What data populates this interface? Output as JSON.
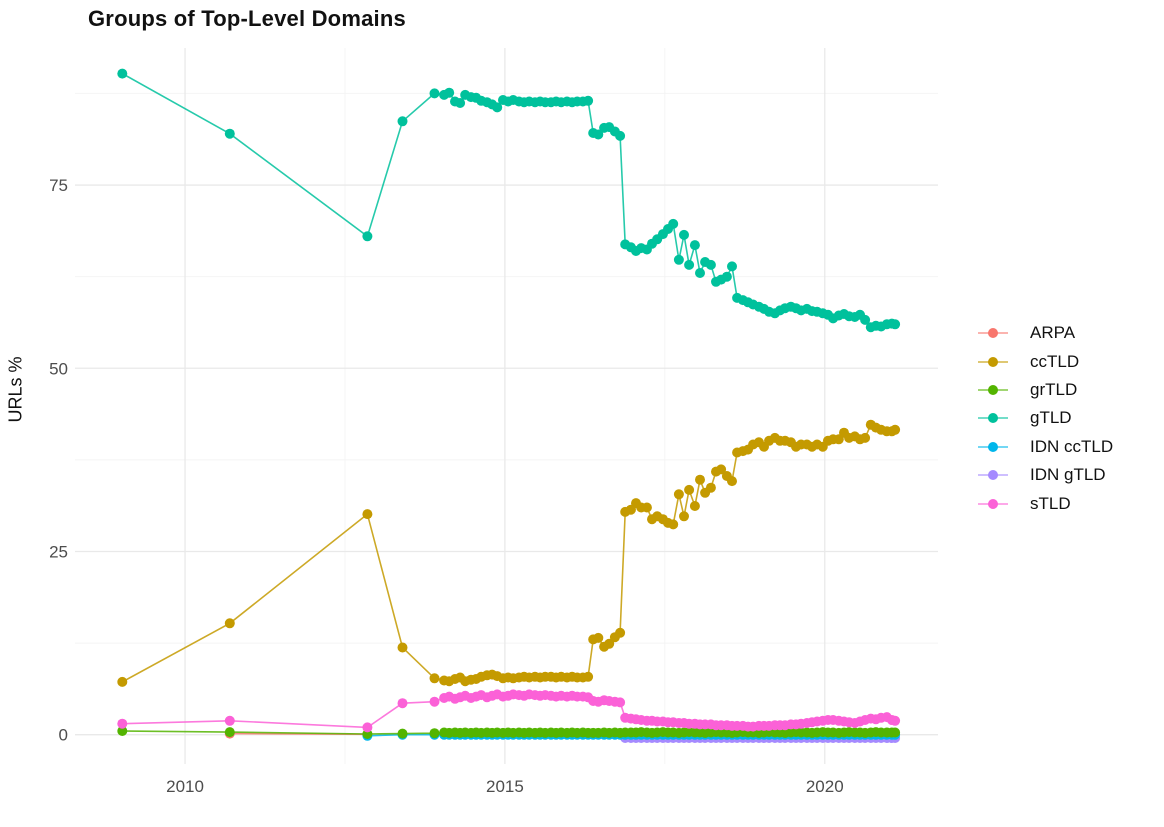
{
  "title": "Groups of Top-Level Domains",
  "y_axis": {
    "label": "URLs %",
    "ticks": [
      "0",
      "25",
      "50",
      "75"
    ],
    "tick_values": [
      0,
      25,
      50,
      75
    ]
  },
  "x_axis": {
    "ticks": [
      "2010",
      "2015",
      "2020"
    ],
    "tick_values": [
      2010,
      2015,
      2020
    ]
  },
  "colors": {
    "ARPA": "#F8766D",
    "ccTLD": "#C49A00",
    "grTLD": "#53B400",
    "gTLD": "#00C19C",
    "IDN ccTLD": "#00B6EB",
    "IDN gTLD": "#A58AFF",
    "sTLD": "#FB61D7",
    "grid_major": "#E9E9E9",
    "grid_minor": "#F4F4F4",
    "axis_text": "#4D4D4D",
    "background": "#FFFFFF"
  },
  "legend": [
    {
      "label": "ARPA",
      "color": "#F8766D"
    },
    {
      "label": "ccTLD",
      "color": "#C49A00"
    },
    {
      "label": "grTLD",
      "color": "#53B400"
    },
    {
      "label": "gTLD",
      "color": "#00C19C"
    },
    {
      "label": "IDN ccTLD",
      "color": "#00B6EB"
    },
    {
      "label": "IDN gTLD",
      "color": "#A58AFF"
    },
    {
      "label": "sTLD",
      "color": "#FB61D7"
    }
  ],
  "chart_data": {
    "type": "line",
    "title": "Groups of Top-Level Domains",
    "xlabel": "",
    "ylabel": "URLs %",
    "xlim": [
      2008.28,
      2021.77
    ],
    "ylim": [
      -4,
      93.7
    ],
    "grid": true,
    "legend_position": "right",
    "x_major_gridlines": [
      2010,
      2015,
      2020
    ],
    "x_minor_gridlines": [
      2012.5,
      2017.5
    ],
    "y_major_gridlines": [
      0,
      25,
      50,
      75
    ],
    "y_minor_gridlines": [
      12.5,
      37.5,
      62.5,
      87.5
    ],
    "x": [
      2009.02,
      2010.7,
      2012.85,
      2013.4,
      2013.9,
      2014.05,
      2014.13,
      2014.22,
      2014.3,
      2014.38,
      2014.47,
      2014.55,
      2014.63,
      2014.72,
      2014.8,
      2014.88,
      2014.97,
      2015.05,
      2015.13,
      2015.22,
      2015.3,
      2015.38,
      2015.47,
      2015.55,
      2015.63,
      2015.72,
      2015.8,
      2015.88,
      2015.97,
      2016.05,
      2016.13,
      2016.22,
      2016.3,
      2016.38,
      2016.46,
      2016.55,
      2016.63,
      2016.72,
      2016.8,
      2016.88,
      2016.97,
      2017.05,
      2017.13,
      2017.22,
      2017.3,
      2017.38,
      2017.47,
      2017.55,
      2017.63,
      2017.72,
      2017.8,
      2017.88,
      2017.97,
      2018.05,
      2018.13,
      2018.22,
      2018.3,
      2018.38,
      2018.47,
      2018.55,
      2018.63,
      2018.72,
      2018.8,
      2018.88,
      2018.97,
      2019.05,
      2019.13,
      2019.22,
      2019.3,
      2019.38,
      2019.47,
      2019.55,
      2019.63,
      2019.72,
      2019.8,
      2019.88,
      2019.97,
      2020.05,
      2020.13,
      2020.22,
      2020.3,
      2020.38,
      2020.47,
      2020.55,
      2020.63,
      2020.72,
      2020.8,
      2020.88,
      2020.97,
      2021.05,
      2021.1
    ],
    "series": [
      {
        "name": "ARPA",
        "color": "#F8766D",
        "values": [
          null,
          0.15,
          0.05,
          null,
          null,
          null,
          null,
          null,
          null,
          null,
          null,
          null,
          null,
          null,
          null,
          null,
          null,
          null,
          null,
          null,
          null,
          null,
          null,
          null,
          null,
          null,
          null,
          null,
          null,
          null,
          null,
          null,
          null,
          null,
          null,
          null,
          null,
          null,
          null,
          null,
          null,
          null,
          null,
          null,
          null,
          null,
          null,
          null,
          null,
          null,
          null,
          null,
          null,
          null,
          null,
          null,
          null,
          null,
          null,
          null,
          null,
          null,
          null,
          null,
          null,
          null,
          null,
          null,
          null,
          null,
          null,
          null,
          null,
          null,
          null,
          null,
          null,
          null,
          null,
          null,
          null,
          null,
          null,
          null,
          null,
          null,
          null,
          null,
          null,
          null,
          null
        ]
      },
      {
        "name": "ccTLD",
        "color": "#C49A00",
        "values": [
          7.2,
          15.2,
          30.1,
          11.9,
          7.7,
          7.4,
          7.3,
          7.6,
          7.8,
          7.3,
          7.5,
          7.6,
          7.9,
          8.1,
          8.2,
          8,
          7.7,
          7.8,
          7.7,
          7.8,
          7.9,
          7.8,
          7.9,
          7.8,
          7.9,
          7.9,
          7.8,
          7.9,
          7.8,
          7.9,
          7.8,
          7.8,
          7.9,
          13,
          13.2,
          12,
          12.4,
          13.3,
          13.9,
          30.4,
          30.7,
          31.6,
          31,
          31,
          29.4,
          29.8,
          29.4,
          28.9,
          28.7,
          32.8,
          29.8,
          33.4,
          31.2,
          34.8,
          33,
          33.7,
          35.9,
          36.2,
          35.3,
          34.6,
          38.5,
          38.7,
          38.9,
          39.6,
          39.9,
          39.3,
          40.1,
          40.5,
          40.1,
          40.1,
          39.9,
          39.3,
          39.6,
          39.6,
          39.3,
          39.6,
          39.3,
          40.1,
          40.3,
          40.3,
          41.2,
          40.5,
          40.7,
          40.3,
          40.5,
          42.3,
          41.9,
          41.6,
          41.4,
          41.4,
          41.6
        ]
      },
      {
        "name": "grTLD",
        "color": "#53B400",
        "values": [
          0.5,
          0.35,
          0.1,
          0.15,
          0.2,
          0.3,
          0.25,
          0.3,
          0.25,
          0.3,
          0.25,
          0.3,
          0.25,
          0.3,
          0.25,
          0.3,
          0.25,
          0.3,
          0.25,
          0.3,
          0.25,
          0.3,
          0.25,
          0.3,
          0.25,
          0.3,
          0.25,
          0.3,
          0.25,
          0.3,
          0.25,
          0.3,
          0.25,
          0.25,
          0.25,
          0.3,
          0.25,
          0.3,
          0.25,
          0.3,
          0.3,
          0.3,
          0.35,
          0.3,
          0.25,
          0.3,
          0.35,
          0.3,
          0.3,
          0.25,
          0.3,
          0.35,
          0.3,
          0.3,
          0.25,
          0.3,
          0.35,
          0.3,
          0.3,
          0.25,
          0.3,
          0.35,
          0.3,
          0.3,
          0.25,
          0.3,
          0.35,
          0.3,
          0.3,
          0.25,
          0.3,
          0.35,
          0.3,
          0.3,
          0.25,
          0.3,
          0.35,
          0.3,
          0.3,
          0.25,
          0.3,
          0.35,
          0.3,
          0.3,
          0.25,
          0.3,
          0.35,
          0.3,
          0.3,
          0.3,
          0.3
        ]
      },
      {
        "name": "gTLD",
        "color": "#00C19C",
        "values": [
          90.2,
          82,
          68,
          83.7,
          87.5,
          87.3,
          87.6,
          86.4,
          86.2,
          87.3,
          87,
          86.9,
          86.5,
          86.3,
          86,
          85.6,
          86.6,
          86.4,
          86.6,
          86.4,
          86.3,
          86.4,
          86.3,
          86.4,
          86.3,
          86.3,
          86.4,
          86.3,
          86.4,
          86.3,
          86.4,
          86.4,
          86.5,
          82.1,
          81.9,
          82.8,
          82.9,
          82.3,
          81.7,
          66.9,
          66.5,
          66,
          66.4,
          66.2,
          67,
          67.6,
          68.3,
          69,
          69.7,
          64.8,
          68.2,
          64.1,
          66.8,
          63,
          64.5,
          64.1,
          61.8,
          62.1,
          62.5,
          63.9,
          59.6,
          59.3,
          59,
          58.7,
          58.4,
          58.1,
          57.7,
          57.5,
          57.9,
          58.2,
          58.4,
          58.2,
          57.9,
          58.1,
          57.8,
          57.7,
          57.5,
          57.3,
          56.8,
          57.2,
          57.4,
          57.1,
          57,
          57.3,
          56.6,
          55.6,
          55.8,
          55.7,
          56,
          56.1,
          56
        ]
      },
      {
        "name": "IDN ccTLD",
        "color": "#00B6EB",
        "values": [
          null,
          null,
          -0.15,
          0,
          0,
          0,
          0,
          0,
          0,
          0,
          0,
          0,
          0,
          0,
          0,
          0,
          0,
          0,
          0,
          0,
          0,
          0,
          0,
          0,
          0,
          0,
          0,
          0,
          0,
          0,
          0,
          0,
          0,
          0,
          0,
          0,
          0,
          0,
          0,
          0,
          0,
          0,
          0,
          0,
          0,
          0,
          0,
          0,
          0,
          0,
          0,
          0,
          0,
          0,
          0,
          0,
          0,
          0,
          0,
          0,
          0,
          0,
          0,
          0,
          0,
          0,
          0,
          0,
          0,
          0,
          0,
          0,
          0,
          0,
          0,
          0,
          0,
          0,
          0,
          0,
          0,
          0,
          0,
          0,
          0,
          0,
          0,
          0,
          0,
          0,
          0
        ]
      },
      {
        "name": "IDN gTLD",
        "color": "#A58AFF",
        "values": [
          null,
          null,
          null,
          null,
          null,
          null,
          null,
          null,
          null,
          null,
          null,
          null,
          null,
          null,
          null,
          null,
          null,
          null,
          null,
          null,
          null,
          null,
          null,
          null,
          null,
          null,
          null,
          null,
          null,
          null,
          null,
          null,
          null,
          null,
          null,
          null,
          null,
          null,
          null,
          -0.45,
          -0.45,
          -0.45,
          -0.45,
          -0.45,
          -0.45,
          -0.45,
          -0.45,
          -0.45,
          -0.45,
          -0.45,
          -0.45,
          -0.45,
          -0.45,
          -0.45,
          -0.45,
          -0.45,
          -0.45,
          -0.45,
          -0.45,
          -0.45,
          -0.45,
          -0.45,
          -0.45,
          -0.45,
          -0.45,
          -0.45,
          -0.45,
          -0.45,
          -0.45,
          -0.45,
          -0.45,
          -0.45,
          -0.45,
          -0.45,
          -0.45,
          -0.45,
          -0.45,
          -0.45,
          -0.45,
          -0.45,
          -0.45,
          -0.45,
          -0.45,
          -0.45,
          -0.45,
          -0.45,
          -0.45,
          -0.45,
          -0.45,
          -0.45,
          -0.45
        ]
      },
      {
        "name": "sTLD",
        "color": "#FB61D7",
        "values": [
          1.5,
          1.9,
          1,
          4.3,
          4.5,
          5,
          5.2,
          4.9,
          5.1,
          5.3,
          5,
          5.2,
          5.4,
          5.1,
          5.3,
          5.5,
          5.2,
          5.3,
          5.5,
          5.4,
          5.3,
          5.5,
          5.4,
          5.3,
          5.4,
          5.3,
          5.2,
          5.3,
          5.2,
          5.3,
          5.2,
          5.2,
          5.1,
          4.6,
          4.5,
          4.7,
          4.6,
          4.5,
          4.4,
          2.3,
          2.2,
          2.1,
          2,
          1.9,
          1.9,
          1.8,
          1.8,
          1.7,
          1.7,
          1.6,
          1.6,
          1.5,
          1.5,
          1.4,
          1.4,
          1.4,
          1.3,
          1.3,
          1.3,
          1.2,
          1.2,
          1.2,
          1.1,
          1.1,
          1.2,
          1.2,
          1.2,
          1.3,
          1.3,
          1.3,
          1.4,
          1.4,
          1.5,
          1.6,
          1.7,
          1.8,
          1.9,
          2,
          2,
          1.9,
          1.8,
          1.7,
          1.6,
          1.8,
          2,
          2.2,
          2.1,
          2.3,
          2.4,
          2,
          1.9
        ]
      }
    ],
    "draw_order": [
      "ARPA",
      "IDN gTLD",
      "IDN ccTLD",
      "grTLD",
      "ccTLD",
      "gTLD",
      "sTLD"
    ]
  }
}
